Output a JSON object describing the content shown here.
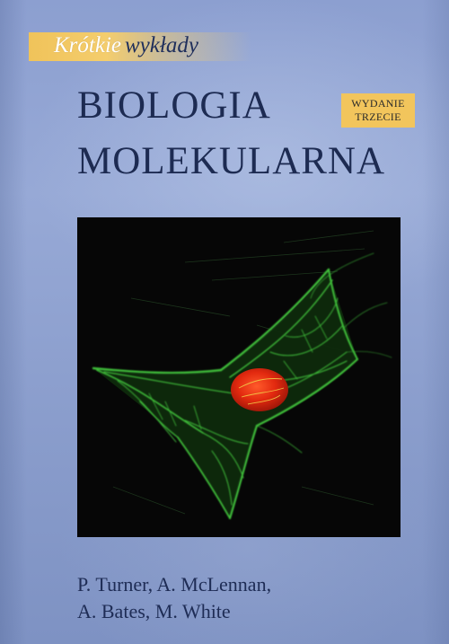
{
  "series": {
    "bold_word": "Krótkie",
    "rest": "wykłady",
    "band_color": "#f2c55c"
  },
  "title": {
    "line1": "BIOLOGIA",
    "line2": "MOLEKULARNA"
  },
  "edition": {
    "line1": "WYDANIE",
    "line2": "TRZECIE"
  },
  "image": {
    "subject": "cell-micrograph",
    "background_color": "#060606",
    "cytoskeleton_color": "#3fbf3a",
    "nucleus_color": "#e02a12"
  },
  "authors": {
    "line1": "P. Turner, A. McLennan,",
    "line2": "A. Bates, M. White"
  },
  "colors": {
    "cover_blue": "#93a6d4",
    "title_navy": "#1d2b52"
  }
}
